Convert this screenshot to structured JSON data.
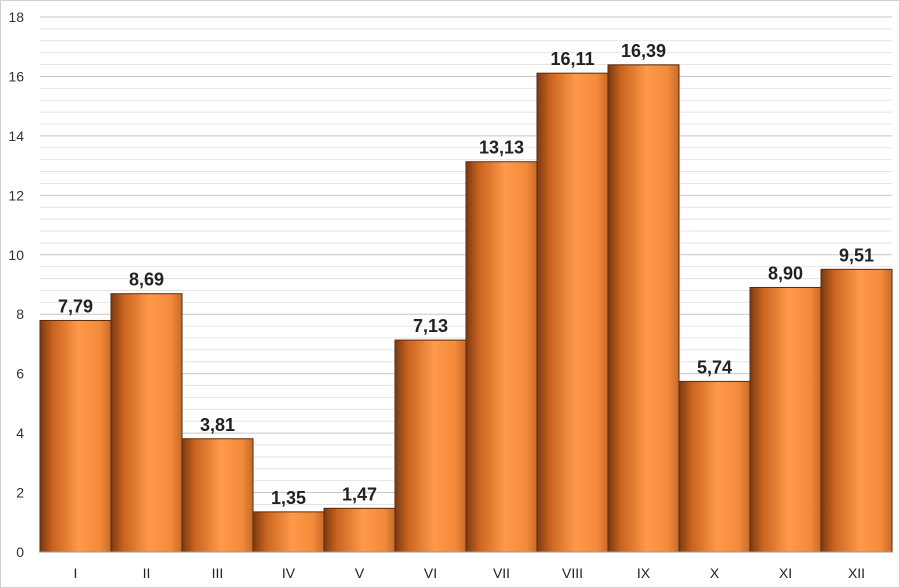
{
  "chart_data": {
    "type": "bar",
    "categories": [
      "I",
      "II",
      "III",
      "IV",
      "V",
      "VI",
      "VII",
      "VIII",
      "IX",
      "X",
      "XI",
      "XII"
    ],
    "values": [
      7.79,
      8.69,
      3.81,
      1.35,
      1.47,
      7.13,
      13.13,
      16.11,
      16.39,
      5.74,
      8.9,
      9.51
    ],
    "value_labels": [
      "7,79",
      "8,69",
      "3,81",
      "1,35",
      "1,47",
      "7,13",
      "13,13",
      "16,11",
      "16,39",
      "5,74",
      "8,90",
      "9,51"
    ],
    "ylim": [
      0,
      18
    ],
    "yticks": [
      "0",
      "2",
      "4",
      "6",
      "8",
      "10",
      "12",
      "14",
      "16",
      "18"
    ],
    "grid": true,
    "bar_color": "#f08a3c"
  }
}
